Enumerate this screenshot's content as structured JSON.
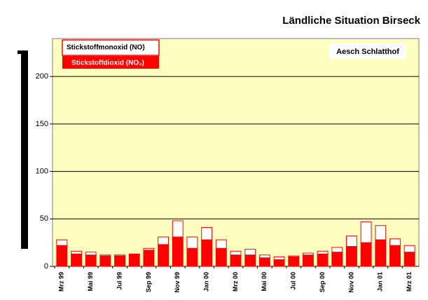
{
  "chart_data": {
    "type": "stacked-bar",
    "title": "Ländliche Situation Birseck",
    "annotation": "Aesch Schlatthof",
    "categories": [
      "Mrz 99",
      null,
      "Mai 99",
      null,
      "Jul 99",
      null,
      "Sep 99",
      null,
      "Nov 99",
      null,
      "Jan 00",
      null,
      "Mrz 00",
      null,
      "Mai 00",
      null,
      "Jul 00",
      null,
      "Sep 00",
      null,
      "Nov 00",
      null,
      "Jan 01",
      null,
      "Mrz 01"
    ],
    "series": [
      {
        "name": "Stickstoffdioxid (NO₂)",
        "color": "#ff0000",
        "values": [
          22,
          13,
          12,
          11,
          11,
          13,
          17,
          23,
          31,
          19,
          28,
          19,
          12,
          12,
          9,
          7,
          10,
          12,
          13,
          15,
          21,
          25,
          28,
          22,
          15
        ]
      },
      {
        "name": "Stickstoffmonoxid (NO)",
        "color": "#ffffff",
        "values": [
          6,
          3,
          3,
          1,
          1,
          0,
          2,
          8,
          17,
          12,
          13,
          9,
          4,
          6,
          3,
          3,
          1,
          2,
          3,
          5,
          11,
          22,
          15,
          7,
          7
        ]
      }
    ],
    "ylim": [
      0,
      240
    ],
    "yticks": [
      0,
      50,
      100,
      150,
      200
    ],
    "grid": true
  }
}
